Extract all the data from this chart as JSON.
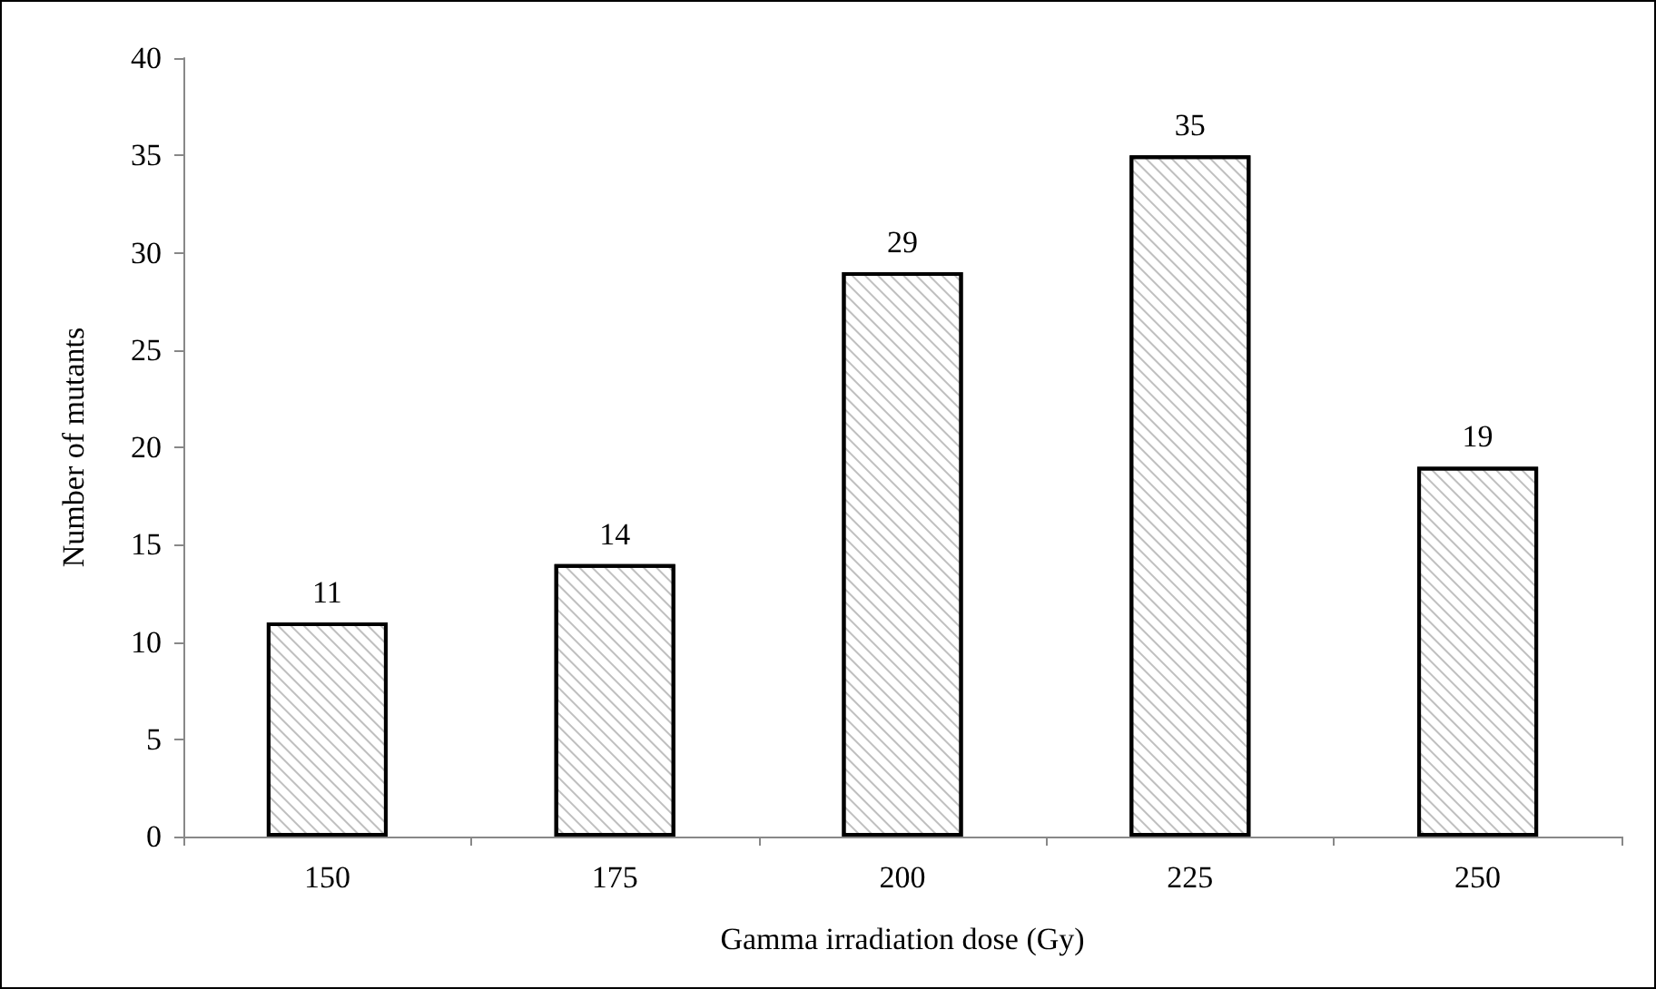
{
  "chart_data": {
    "type": "bar",
    "xlabel": "Gamma irradiation dose (Gy)",
    "ylabel": "Number of mutants",
    "categories": [
      "150",
      "175",
      "200",
      "225",
      "250"
    ],
    "values": [
      11,
      14,
      29,
      35,
      19
    ],
    "color": "#000000",
    "ylim": [
      0,
      40
    ],
    "yticks": [
      0,
      5,
      10,
      15,
      20,
      25,
      30,
      35,
      40
    ],
    "grid": false,
    "data_labels": true
  }
}
